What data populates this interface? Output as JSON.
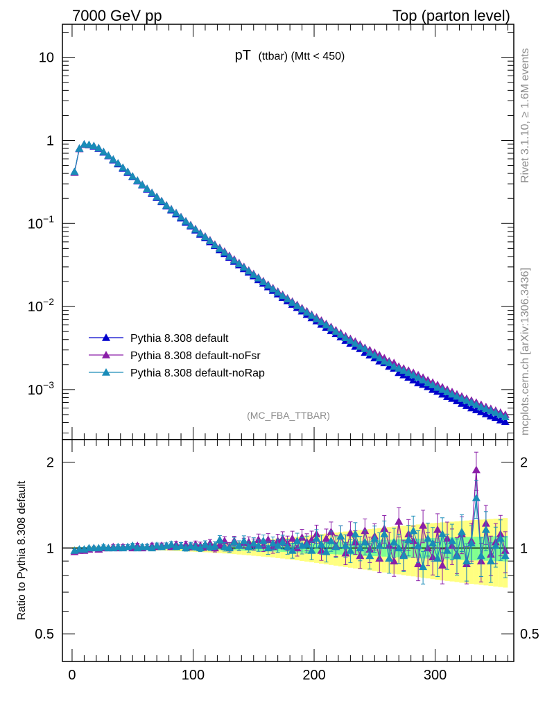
{
  "header": {
    "left": "7000 GeV pp",
    "right": "Top (parton level)"
  },
  "side_labels": {
    "rivet": "Rivet 3.1.10, ≥ 1.6M events",
    "mcplots": "mcplots.cern.ch [arXiv:1306.3436]"
  },
  "plot_title": {
    "main": "pT",
    "sub": "(ttbar) (Mtt < 450)"
  },
  "analysis_label": "(MC_FBA_TTBAR)",
  "ratio_ylabel": "Ratio to Pythia 8.308 default",
  "colors": {
    "default": "#0000cc",
    "noFsr": "#8a1ea8",
    "noRap": "#1a8cb8",
    "band_yellow": "#ffff80",
    "band_green": "#80ff90"
  },
  "chart_data": [
    {
      "type": "line",
      "scale": "log",
      "xlim": [
        -8,
        365
      ],
      "ylim": [
        0.00025,
        25
      ],
      "y_ticks": [
        {
          "value": 10,
          "label": "10"
        },
        {
          "value": 1,
          "label": "1"
        },
        {
          "value": 0.1,
          "base": "10",
          "exp": "−1"
        },
        {
          "value": 0.01,
          "base": "10",
          "exp": "−2"
        },
        {
          "value": 0.001,
          "base": "10",
          "exp": "−3"
        }
      ],
      "legend": [
        "Pythia 8.308 default",
        "Pythia 8.308 default-noFsr",
        "Pythia 8.308 default-noRap"
      ],
      "legend_position": "bottom-left",
      "x": [
        2,
        6,
        10,
        14,
        18,
        22,
        26,
        30,
        34,
        38,
        42,
        46,
        50,
        54,
        58,
        62,
        66,
        70,
        74,
        78,
        82,
        86,
        90,
        94,
        98,
        102,
        106,
        110,
        114,
        118,
        122,
        126,
        130,
        134,
        138,
        142,
        146,
        150,
        154,
        158,
        162,
        166,
        170,
        174,
        178,
        182,
        186,
        190,
        194,
        198,
        202,
        206,
        210,
        214,
        218,
        222,
        226,
        230,
        234,
        238,
        242,
        246,
        250,
        254,
        258,
        262,
        266,
        270,
        274,
        278,
        282,
        286,
        290,
        294,
        298,
        302,
        306,
        310,
        314,
        318,
        322,
        326,
        330,
        334,
        338,
        342,
        346,
        350,
        354,
        358
      ],
      "series": [
        {
          "name": "Pythia 8.308 default",
          "values": [
            0.42,
            0.8,
            0.9,
            0.88,
            0.85,
            0.8,
            0.72,
            0.65,
            0.58,
            0.52,
            0.46,
            0.41,
            0.365,
            0.325,
            0.29,
            0.258,
            0.23,
            0.205,
            0.182,
            0.162,
            0.145,
            0.13,
            0.116,
            0.103,
            0.093,
            0.083,
            0.074,
            0.067,
            0.06,
            0.054,
            0.048,
            0.043,
            0.039,
            0.035,
            0.0315,
            0.0285,
            0.0258,
            0.0233,
            0.021,
            0.019,
            0.0172,
            0.0156,
            0.0141,
            0.0128,
            0.0117,
            0.0106,
            0.0097,
            0.0088,
            0.008,
            0.0073,
            0.0067,
            0.0061,
            0.0056,
            0.0051,
            0.0047,
            0.0043,
            0.0039,
            0.0036,
            0.0033,
            0.0031,
            0.0028,
            0.0026,
            0.0024,
            0.0022,
            0.0021,
            0.0019,
            0.0018,
            0.0016,
            0.0015,
            0.0014,
            0.0013,
            0.0012,
            0.00115,
            0.00108,
            0.001,
            0.00095,
            0.00088,
            0.00082,
            0.00078,
            0.00073,
            0.00068,
            0.00064,
            0.0006,
            0.00057,
            0.00054,
            0.00051,
            0.00048,
            0.00046,
            0.00043,
            0.00041
          ]
        },
        {
          "name": "Pythia 8.308 default-noFsr",
          "values": [
            0.41,
            0.79,
            0.89,
            0.88,
            0.86,
            0.81,
            0.73,
            0.66,
            0.59,
            0.53,
            0.47,
            0.42,
            0.37,
            0.33,
            0.295,
            0.263,
            0.235,
            0.21,
            0.187,
            0.166,
            0.149,
            0.134,
            0.12,
            0.107,
            0.096,
            0.086,
            0.077,
            0.07,
            0.063,
            0.056,
            0.051,
            0.046,
            0.041,
            0.037,
            0.0335,
            0.0302,
            0.0273,
            0.0247,
            0.0224,
            0.0203,
            0.0184,
            0.0167,
            0.0152,
            0.0139,
            0.0126,
            0.0115,
            0.0105,
            0.0096,
            0.0088,
            0.008,
            0.0074,
            0.0068,
            0.0062,
            0.0057,
            0.0052,
            0.0048,
            0.0044,
            0.0041,
            0.0038,
            0.0035,
            0.0032,
            0.003,
            0.0028,
            0.0026,
            0.0024,
            0.0022,
            0.0021,
            0.0019,
            0.0018,
            0.0017,
            0.0016,
            0.0015,
            0.0014,
            0.0013,
            0.00122,
            0.00114,
            0.00107,
            0.001,
            0.00094,
            0.00088,
            0.00083,
            0.00078,
            0.00074,
            0.0007,
            0.00066,
            0.00062,
            0.00059,
            0.00056,
            0.00053,
            0.0005
          ]
        },
        {
          "name": "Pythia 8.308 default-noRap",
          "values": [
            0.42,
            0.8,
            0.9,
            0.89,
            0.86,
            0.81,
            0.73,
            0.66,
            0.59,
            0.53,
            0.47,
            0.42,
            0.37,
            0.33,
            0.293,
            0.262,
            0.234,
            0.209,
            0.186,
            0.165,
            0.148,
            0.133,
            0.119,
            0.106,
            0.095,
            0.085,
            0.076,
            0.069,
            0.062,
            0.055,
            0.05,
            0.045,
            0.04,
            0.036,
            0.0328,
            0.0296,
            0.0268,
            0.0242,
            0.022,
            0.0199,
            0.018,
            0.0163,
            0.0148,
            0.0135,
            0.0123,
            0.0112,
            0.0102,
            0.0093,
            0.0085,
            0.0078,
            0.0071,
            0.0065,
            0.006,
            0.0055,
            0.005,
            0.0046,
            0.0042,
            0.0039,
            0.0036,
            0.0033,
            0.0031,
            0.0028,
            0.0026,
            0.0024,
            0.0022,
            0.0021,
            0.0019,
            0.0018,
            0.0017,
            0.0016,
            0.0015,
            0.0014,
            0.0013,
            0.0012,
            0.00114,
            0.00106,
            0.001,
            0.00094,
            0.00088,
            0.00083,
            0.00078,
            0.00074,
            0.0007,
            0.00066,
            0.00062,
            0.00059,
            0.00056,
            0.00053,
            0.0005,
            0.00047
          ]
        }
      ]
    },
    {
      "type": "line",
      "scale": "log",
      "xlim": [
        -8,
        365
      ],
      "ylim": [
        0.4,
        2.4
      ],
      "ylabel": "Ratio to Pythia 8.308 default",
      "y_ticks": [
        {
          "value": 2,
          "label": "2"
        },
        {
          "value": 1,
          "label": "1"
        },
        {
          "value": 0.5,
          "label": "0.5"
        }
      ],
      "x_ticks": [
        {
          "value": 0,
          "label": "0"
        },
        {
          "value": 100,
          "label": "100"
        },
        {
          "value": 200,
          "label": "200"
        },
        {
          "value": 300,
          "label": "300"
        }
      ],
      "x": [
        2,
        6,
        10,
        14,
        18,
        22,
        26,
        30,
        34,
        38,
        42,
        46,
        50,
        54,
        58,
        62,
        66,
        70,
        74,
        78,
        82,
        86,
        90,
        94,
        98,
        102,
        106,
        110,
        114,
        118,
        122,
        126,
        130,
        134,
        138,
        142,
        146,
        150,
        154,
        158,
        162,
        166,
        170,
        174,
        178,
        182,
        186,
        190,
        194,
        198,
        202,
        206,
        210,
        214,
        218,
        222,
        226,
        230,
        234,
        238,
        242,
        246,
        250,
        254,
        258,
        262,
        266,
        270,
        274,
        278,
        282,
        286,
        290,
        294,
        298,
        302,
        306,
        310,
        314,
        318,
        322,
        326,
        330,
        334,
        338,
        342,
        346,
        350,
        354,
        358
      ],
      "band_halfwidth": [
        0.005,
        0.005,
        0.005,
        0.005,
        0.006,
        0.006,
        0.006,
        0.007,
        0.007,
        0.007,
        0.008,
        0.008,
        0.009,
        0.009,
        0.01,
        0.01,
        0.011,
        0.012,
        0.012,
        0.013,
        0.014,
        0.015,
        0.016,
        0.017,
        0.018,
        0.019,
        0.02,
        0.021,
        0.022,
        0.024,
        0.025,
        0.027,
        0.028,
        0.03,
        0.032,
        0.034,
        0.036,
        0.038,
        0.04,
        0.042,
        0.044,
        0.046,
        0.049,
        0.051,
        0.054,
        0.056,
        0.059,
        0.062,
        0.065,
        0.068,
        0.071,
        0.074,
        0.077,
        0.08,
        0.083,
        0.086,
        0.089,
        0.092,
        0.095,
        0.098,
        0.1,
        0.103,
        0.106,
        0.109,
        0.112,
        0.115,
        0.118,
        0.12,
        0.123,
        0.126,
        0.128,
        0.131,
        0.134,
        0.136,
        0.139,
        0.141,
        0.144,
        0.146,
        0.148,
        0.15,
        0.153,
        0.155,
        0.157,
        0.159,
        0.161,
        0.163,
        0.165,
        0.167,
        0.169,
        0.171
      ],
      "series": [
        {
          "name": "Pythia 8.308 default-noFsr",
          "values": [
            0.97,
            0.98,
            0.98,
            0.99,
            1.0,
            0.99,
            1.0,
            1.0,
            1.01,
            1.0,
            1.01,
            1.01,
            1.0,
            1.02,
            1.0,
            1.01,
            1.02,
            1.01,
            1.02,
            1.02,
            1.01,
            1.03,
            1.02,
            1.03,
            1.01,
            1.03,
            1.02,
            1.01,
            1.04,
            1.0,
            1.03,
            1.06,
            1.01,
            1.06,
            1.02,
            1.04,
            1.05,
            1.03,
            1.07,
            1.02,
            1.07,
            1.01,
            1.06,
            1.08,
            1.04,
            1.08,
            1.0,
            1.09,
            1.05,
            1.07,
            1.12,
            0.98,
            1.08,
            1.14,
            1.02,
            1.1,
            0.96,
            1.13,
            1.05,
            0.94,
            1.15,
            0.99,
            1.1,
            0.92,
            1.17,
            1.02,
            0.9,
            1.24,
            0.95,
            1.12,
            1.06,
            0.88,
            1.2,
            1.0,
            0.93,
            1.16,
            0.87,
            1.08,
            1.02,
            0.95,
            1.12,
            0.88,
            1.06,
            1.88,
            0.9,
            1.22,
            0.95,
            1.05,
            1.12,
            0.98
          ]
        },
        {
          "name": "Pythia 8.308 default-noRap",
          "values": [
            0.98,
            0.99,
            0.99,
            1.0,
            1.0,
            1.0,
            1.01,
            1.0,
            1.0,
            1.01,
            1.0,
            1.01,
            1.02,
            1.0,
            1.01,
            1.01,
            1.0,
            1.02,
            1.01,
            1.02,
            1.03,
            1.01,
            1.02,
            1.0,
            1.02,
            1.01,
            1.0,
            1.03,
            1.01,
            1.02,
            1.07,
            1.01,
            1.0,
            1.05,
            1.02,
            1.06,
            1.01,
            1.04,
            1.02,
            1.06,
            1.0,
            1.04,
            1.02,
            1.05,
            1.01,
            0.98,
            1.06,
            1.02,
            1.03,
            0.98,
            1.08,
            1.03,
            0.97,
            1.06,
            1.01,
            1.1,
            1.02,
            0.98,
            1.12,
            1.0,
            1.05,
            0.94,
            1.08,
            1.02,
            1.12,
            0.92,
            1.05,
            1.0,
            0.94,
            1.07,
            1.15,
            1.02,
            0.86,
            1.08,
            1.04,
            0.92,
            1.12,
            0.98,
            1.06,
            0.94,
            1.14,
            0.9,
            1.04,
            1.5,
            0.94,
            1.16,
            0.9,
            1.02,
            1.08,
            0.94
          ]
        }
      ]
    }
  ]
}
